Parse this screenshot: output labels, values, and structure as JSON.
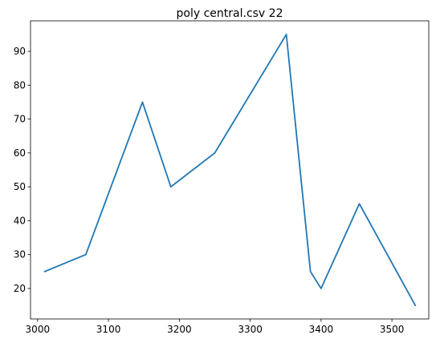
{
  "chart_data": {
    "type": "line",
    "title": "poly central.csv 22",
    "xlabel": "",
    "ylabel": "",
    "xlim": [
      2990,
      3552
    ],
    "ylim": [
      11,
      99
    ],
    "grid": false,
    "x_ticks": [
      3000,
      3100,
      3200,
      3300,
      3400,
      3500
    ],
    "y_ticks": [
      20,
      30,
      40,
      50,
      60,
      70,
      80,
      90
    ],
    "series": [
      {
        "color": "#1f77b4",
        "x": [
          3010,
          3068,
          3148,
          3188,
          3250,
          3351,
          3385,
          3400,
          3454,
          3533
        ],
        "y": [
          25,
          30,
          75,
          50,
          60,
          95,
          25,
          20,
          45,
          15
        ]
      }
    ]
  }
}
